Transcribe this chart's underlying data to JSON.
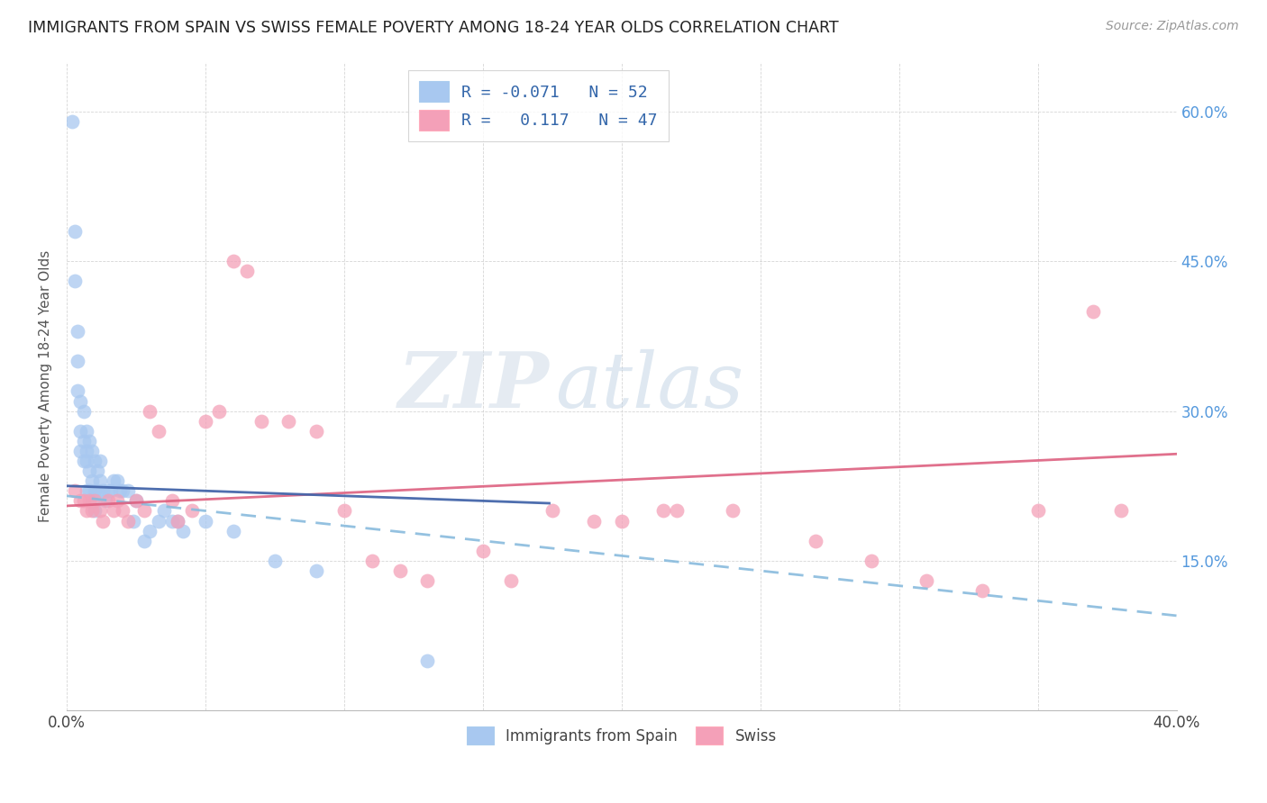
{
  "title": "IMMIGRANTS FROM SPAIN VS SWISS FEMALE POVERTY AMONG 18-24 YEAR OLDS CORRELATION CHART",
  "source": "Source: ZipAtlas.com",
  "ylabel": "Female Poverty Among 18-24 Year Olds",
  "xlim": [
    0.0,
    0.4
  ],
  "ylim": [
    0.0,
    0.65
  ],
  "color_blue": "#A8C8F0",
  "color_pink": "#F4A0B8",
  "color_blue_line": "#4477BB",
  "color_pink_line": "#E06080",
  "color_grid": "#CCCCCC",
  "watermark_zip": "ZIP",
  "watermark_atlas": "atlas",
  "spain_x": [
    0.002,
    0.003,
    0.003,
    0.004,
    0.004,
    0.004,
    0.005,
    0.005,
    0.005,
    0.006,
    0.006,
    0.006,
    0.007,
    0.007,
    0.007,
    0.007,
    0.008,
    0.008,
    0.008,
    0.009,
    0.009,
    0.009,
    0.01,
    0.01,
    0.01,
    0.011,
    0.011,
    0.012,
    0.012,
    0.013,
    0.014,
    0.015,
    0.016,
    0.017,
    0.018,
    0.019,
    0.02,
    0.022,
    0.024,
    0.025,
    0.028,
    0.03,
    0.033,
    0.035,
    0.038,
    0.04,
    0.042,
    0.05,
    0.06,
    0.075,
    0.09,
    0.13
  ],
  "spain_y": [
    0.59,
    0.48,
    0.43,
    0.38,
    0.35,
    0.32,
    0.31,
    0.28,
    0.26,
    0.3,
    0.27,
    0.25,
    0.28,
    0.26,
    0.25,
    0.22,
    0.27,
    0.24,
    0.22,
    0.26,
    0.23,
    0.21,
    0.25,
    0.22,
    0.2,
    0.24,
    0.22,
    0.25,
    0.23,
    0.22,
    0.21,
    0.22,
    0.22,
    0.23,
    0.23,
    0.22,
    0.22,
    0.22,
    0.19,
    0.21,
    0.17,
    0.18,
    0.19,
    0.2,
    0.19,
    0.19,
    0.18,
    0.19,
    0.18,
    0.15,
    0.14,
    0.05
  ],
  "swiss_x": [
    0.003,
    0.005,
    0.006,
    0.007,
    0.008,
    0.009,
    0.01,
    0.012,
    0.013,
    0.015,
    0.017,
    0.018,
    0.02,
    0.022,
    0.025,
    0.028,
    0.03,
    0.033,
    0.038,
    0.04,
    0.045,
    0.05,
    0.055,
    0.06,
    0.065,
    0.07,
    0.08,
    0.09,
    0.1,
    0.11,
    0.12,
    0.13,
    0.15,
    0.16,
    0.175,
    0.19,
    0.2,
    0.215,
    0.22,
    0.24,
    0.27,
    0.29,
    0.31,
    0.33,
    0.35,
    0.37,
    0.38
  ],
  "swiss_y": [
    0.22,
    0.21,
    0.21,
    0.2,
    0.21,
    0.2,
    0.21,
    0.2,
    0.19,
    0.21,
    0.2,
    0.21,
    0.2,
    0.19,
    0.21,
    0.2,
    0.3,
    0.28,
    0.21,
    0.19,
    0.2,
    0.29,
    0.3,
    0.45,
    0.44,
    0.29,
    0.29,
    0.28,
    0.2,
    0.15,
    0.14,
    0.13,
    0.16,
    0.13,
    0.2,
    0.19,
    0.19,
    0.2,
    0.2,
    0.2,
    0.17,
    0.15,
    0.13,
    0.12,
    0.2,
    0.4,
    0.2
  ]
}
